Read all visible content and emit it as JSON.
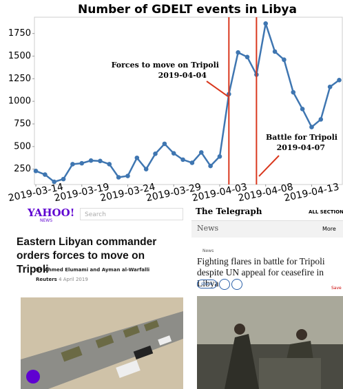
{
  "chart_data": {
    "type": "line",
    "title": "Number of GDELT events in Libya",
    "x": [
      "2019-03-14",
      "2019-03-15",
      "2019-03-16",
      "2019-03-17",
      "2019-03-18",
      "2019-03-19",
      "2019-03-20",
      "2019-03-21",
      "2019-03-22",
      "2019-03-23",
      "2019-03-24",
      "2019-03-25",
      "2019-03-26",
      "2019-03-27",
      "2019-03-28",
      "2019-03-29",
      "2019-03-30",
      "2019-03-31",
      "2019-04-01",
      "2019-04-02",
      "2019-04-03",
      "2019-04-04",
      "2019-04-05",
      "2019-04-06",
      "2019-04-07",
      "2019-04-08",
      "2019-04-09",
      "2019-04-10",
      "2019-04-11",
      "2019-04-12",
      "2019-04-13",
      "2019-04-14",
      "2019-04-15",
      "2019-04-16"
    ],
    "values": [
      230,
      190,
      110,
      140,
      305,
      315,
      345,
      340,
      305,
      160,
      175,
      375,
      250,
      420,
      530,
      425,
      355,
      320,
      435,
      285,
      390,
      1080,
      1540,
      1490,
      1295,
      1860,
      1550,
      1460,
      1100,
      915,
      715,
      800,
      1160,
      1235
    ],
    "color": "#3f76b1",
    "ylim": [
      80,
      1930
    ],
    "yticks": [
      250,
      500,
      750,
      1000,
      1250,
      1500,
      1750
    ],
    "xticks": [
      "2019-03-14",
      "2019-03-19",
      "2019-03-24",
      "2019-03-29",
      "2019-04-03",
      "2019-04-08",
      "2019-04-13"
    ],
    "annotations": [
      {
        "text": "Forces to move on Tripoli",
        "date": "2019-04-04",
        "color": "#d9381e"
      },
      {
        "text": "Battle for Tripoli",
        "date": "2019-04-07",
        "color": "#d9381e"
      }
    ]
  },
  "yahoo_article": {
    "logo": "YAHOO!",
    "logo_sub": "NEWS",
    "search": "Search",
    "headline": "Eastern Libyan commander orders forces to move on Tripoli",
    "byline": "By Ahmed Elumami and Ayman al-Warfalli",
    "source": "Reuters",
    "date": "4 April 2019"
  },
  "telegraph_article": {
    "logo": "The Telegraph",
    "sections": "ALL SECTIONS",
    "nav": "News",
    "more": "More",
    "breadcrumb": "News",
    "headline": "Fighting flares in battle for Tripoli despite UN appeal for ceasefire in Libya",
    "share": "share",
    "save": "Save"
  }
}
